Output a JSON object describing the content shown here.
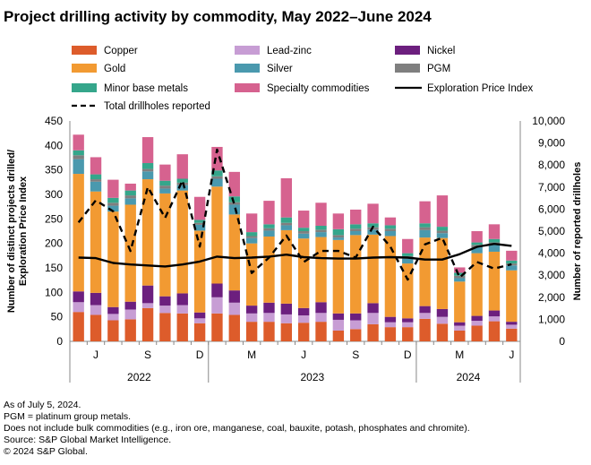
{
  "title": "Project drilling activity by commodity, May 2022–June 2024",
  "footnotes": [
    "As of July 5, 2024.",
    "PGM = platinum group metals.",
    "Does not include bulk commodities (e.g., iron ore, manganese, coal, bauxite, potash, phosphates and chromite).",
    "Source: S&P Global Market Intelligence.",
    "© 2024 S&P Global."
  ],
  "colors": {
    "Copper": "#dd5c2b",
    "Lead-zinc": "#c79dd4",
    "Nickel": "#6c1f7e",
    "Gold": "#f29a32",
    "Silver": "#4a99ae",
    "PGM": "#7f7f7f",
    "Minor base metals": "#35a68b",
    "Specialty commodities": "#d6628f",
    "Exploration Price Index": "#000000",
    "Total drillholes reported": "#000000"
  },
  "chart_data": {
    "type": "bar",
    "stacked": true,
    "left_axis_title": "Number of distinct projects drilled/ Exploration Price Index",
    "right_axis_title": "Number of reported drillholes",
    "ylim_left": [
      0,
      450
    ],
    "yticks_left": [
      "0",
      "50",
      "100",
      "150",
      "200",
      "250",
      "300",
      "350",
      "400",
      "450"
    ],
    "ylim_right": [
      0,
      10000
    ],
    "yticks_right": [
      "0",
      "1,000",
      "2,000",
      "3,000",
      "4,000",
      "5,000",
      "6,000",
      "7,000",
      "8,000",
      "9,000",
      "10,000"
    ],
    "categories": [
      "2022-05",
      "2022-06",
      "2022-07",
      "2022-08",
      "2022-09",
      "2022-10",
      "2022-11",
      "2022-12",
      "2023-01",
      "2023-02",
      "2023-03",
      "2023-04",
      "2023-05",
      "2023-06",
      "2023-07",
      "2023-08",
      "2023-09",
      "2023-10",
      "2023-11",
      "2023-12",
      "2024-01",
      "2024-02",
      "2024-03",
      "2024-04",
      "2024-05",
      "2024-06"
    ],
    "x_tick_labels": [
      "",
      "J",
      "",
      "S",
      "",
      "D",
      "",
      "M",
      "",
      "J",
      "",
      "S",
      "",
      "D",
      "",
      "M",
      "",
      "J"
    ],
    "x_tick_positions": [
      0,
      1,
      3,
      5,
      7,
      9,
      11,
      13,
      15,
      17,
      19,
      21,
      23,
      25
    ],
    "years": [
      {
        "label": "2022",
        "start": 0,
        "end": 7
      },
      {
        "label": "2023",
        "start": 8,
        "end": 19
      },
      {
        "label": "2024",
        "start": 20,
        "end": 25
      }
    ],
    "series": [
      {
        "name": "Copper",
        "kind": "bar",
        "values": [
          60,
          54,
          43,
          45,
          68,
          58,
          57,
          37,
          57,
          54,
          40,
          40,
          37,
          38,
          40,
          22,
          25,
          35,
          29,
          29,
          46,
          36,
          22,
          32,
          41,
          26
        ]
      },
      {
        "name": "Lead-zinc",
        "kind": "bar",
        "values": [
          20,
          20,
          13,
          20,
          10,
          15,
          17,
          10,
          33,
          25,
          17,
          18,
          18,
          15,
          18,
          22,
          18,
          23,
          10,
          10,
          12,
          14,
          10,
          10,
          10,
          8
        ]
      },
      {
        "name": "Nickel",
        "kind": "bar",
        "values": [
          22,
          25,
          14,
          16,
          36,
          19,
          24,
          12,
          28,
          25,
          16,
          21,
          22,
          15,
          22,
          13,
          14,
          20,
          11,
          8,
          14,
          16,
          7,
          10,
          12,
          6
        ]
      },
      {
        "name": "Gold",
        "kind": "bar",
        "values": [
          240,
          207,
          195,
          198,
          217,
          210,
          210,
          167,
          198,
          155,
          127,
          135,
          150,
          142,
          133,
          150,
          160,
          140,
          165,
          112,
          140,
          145,
          83,
          128,
          120,
          105
        ]
      },
      {
        "name": "Silver",
        "kind": "bar",
        "values": [
          30,
          20,
          12,
          13,
          16,
          10,
          11,
          12,
          16,
          20,
          11,
          12,
          10,
          10,
          10,
          5,
          8,
          10,
          10,
          10,
          15,
          10,
          7,
          12,
          14,
          10
        ]
      },
      {
        "name": "PGM",
        "kind": "bar",
        "values": [
          8,
          5,
          6,
          6,
          5,
          6,
          5,
          4,
          5,
          5,
          4,
          5,
          5,
          5,
          5,
          5,
          5,
          5,
          5,
          5,
          6,
          5,
          5,
          5,
          5,
          4
        ]
      },
      {
        "name": "Minor base metals",
        "kind": "bar",
        "values": [
          10,
          10,
          10,
          10,
          12,
          10,
          8,
          6,
          12,
          12,
          8,
          8,
          11,
          7,
          8,
          12,
          9,
          8,
          7,
          6,
          8,
          8,
          6,
          5,
          7,
          6
        ]
      },
      {
        "name": "Specialty commodities",
        "kind": "bar",
        "values": [
          32,
          35,
          37,
          14,
          53,
          33,
          50,
          47,
          48,
          50,
          38,
          48,
          80,
          35,
          47,
          32,
          30,
          40,
          16,
          29,
          45,
          64,
          11,
          23,
          30,
          20
        ]
      },
      {
        "name": "Exploration Price Index",
        "kind": "line",
        "style": "solid",
        "axis": "left",
        "values": [
          171,
          170,
          160,
          157,
          155,
          153,
          157,
          163,
          173,
          170,
          171,
          173,
          177,
          172,
          170,
          169,
          169,
          171,
          172,
          171,
          167,
          167,
          178,
          193,
          199,
          195
        ]
      },
      {
        "name": "Total drillholes reported",
        "kind": "line",
        "style": "dashed",
        "axis": "right",
        "values": [
          5400,
          6400,
          5900,
          4100,
          7000,
          5600,
          7300,
          4300,
          8700,
          6200,
          3100,
          3800,
          4800,
          3600,
          4100,
          4100,
          3800,
          5200,
          4300,
          2800,
          4400,
          4700,
          2900,
          3600,
          3300,
          3500
        ]
      }
    ],
    "legend_position": "top"
  }
}
